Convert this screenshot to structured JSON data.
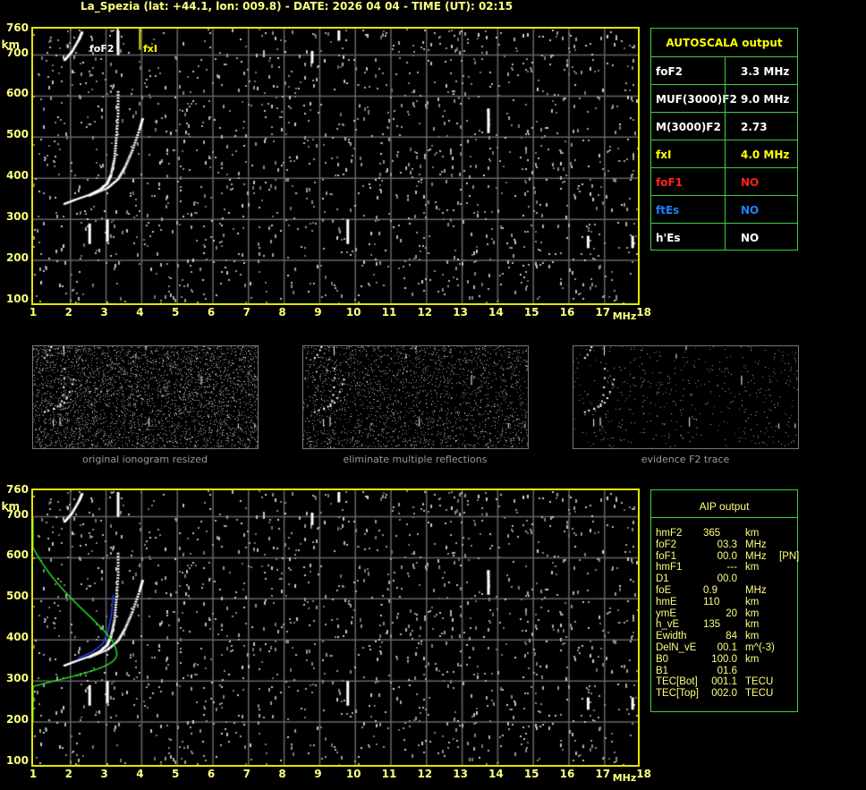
{
  "header": {
    "title": "La_Spezia (lat: +44.1, lon: 009.8) - DATE: 2026 04 04 - TIME (UT): 02:15"
  },
  "axes": {
    "y_ticks": [
      "760",
      "700",
      "600",
      "500",
      "400",
      "300",
      "200",
      "100"
    ],
    "y_unit": "km",
    "x_ticks": [
      "1",
      "2",
      "3",
      "4",
      "5",
      "6",
      "7",
      "8",
      "9",
      "10",
      "11",
      "12",
      "13",
      "14",
      "15",
      "16",
      "17",
      "18"
    ],
    "x_unit": "MHz"
  },
  "top_plot": {
    "labels": {
      "foF2": "foF2",
      "fxI": "fxI"
    },
    "foF2_MHz": 3.3,
    "fxI_MHz": 4.0
  },
  "autoscala": {
    "title": "AUTOSCALA output",
    "rows": [
      {
        "label": "foF2",
        "value": "3.3 MHz",
        "label_color": "#ffffff",
        "value_color": "#ffffff"
      },
      {
        "label": "MUF(3000)F2",
        "value": "9.0 MHz",
        "label_color": "#ffffff",
        "value_color": "#ffffff"
      },
      {
        "label": "M(3000)F2",
        "value": "2.73",
        "label_color": "#ffffff",
        "value_color": "#ffffff"
      },
      {
        "label": "fxI",
        "value": "4.0 MHz",
        "label_color": "#ffff00",
        "value_color": "#ffff00"
      },
      {
        "label": "foF1",
        "value": "NO",
        "label_color": "#ff2020",
        "value_color": "#ff2020"
      },
      {
        "label": "ftEs",
        "value": "NO",
        "label_color": "#2080ff",
        "value_color": "#2080ff"
      },
      {
        "label": "h'Es",
        "value": "NO",
        "label_color": "#ffffff",
        "value_color": "#ffffff"
      }
    ]
  },
  "thumbnails": [
    {
      "caption": "original ionogram resized"
    },
    {
      "caption": "eliminate multiple reflections"
    },
    {
      "caption": "evidence F2 trace"
    }
  ],
  "aip": {
    "title": "AIP output",
    "rows": [
      {
        "param": "hmF2",
        "value": "365",
        "unit": "km",
        "note": ""
      },
      {
        "param": "foF2",
        "value": "03.3",
        "unit": "MHz",
        "note": ""
      },
      {
        "param": "foF1",
        "value": "00.0",
        "unit": "MHz",
        "note": "[PN]"
      },
      {
        "param": "hmF1",
        "value": "---",
        "unit": "km",
        "note": ""
      },
      {
        "param": "D1",
        "value": "00.0",
        "unit": "",
        "note": ""
      },
      {
        "param": "foE",
        "value": "0.9",
        "unit": "MHz",
        "note": ""
      },
      {
        "param": "hmE",
        "value": "110",
        "unit": "km",
        "note": ""
      },
      {
        "param": "ymE",
        "value": "20",
        "unit": "km",
        "note": ""
      },
      {
        "param": "h_vE",
        "value": "135",
        "unit": "km",
        "note": ""
      },
      {
        "param": "Ewidth",
        "value": "84",
        "unit": "km",
        "note": ""
      },
      {
        "param": "DelN_vE",
        "value": "00.1",
        "unit": "m^(-3)",
        "note": ""
      },
      {
        "param": "B0",
        "value": "100.0",
        "unit": "km",
        "note": ""
      },
      {
        "param": "B1",
        "value": "01.6",
        "unit": "",
        "note": ""
      },
      {
        "param": "TEC[Bot]",
        "value": "001.1",
        "unit": "TECU",
        "note": ""
      },
      {
        "param": "TEC[Top]",
        "value": "002.0",
        "unit": "TECU",
        "note": ""
      }
    ]
  },
  "colors": {
    "frame": "#e6e600",
    "table_border": "#3ecf3e",
    "grid": "#666666",
    "profile": "#22dd22",
    "trace_fit": "#2244ff"
  }
}
